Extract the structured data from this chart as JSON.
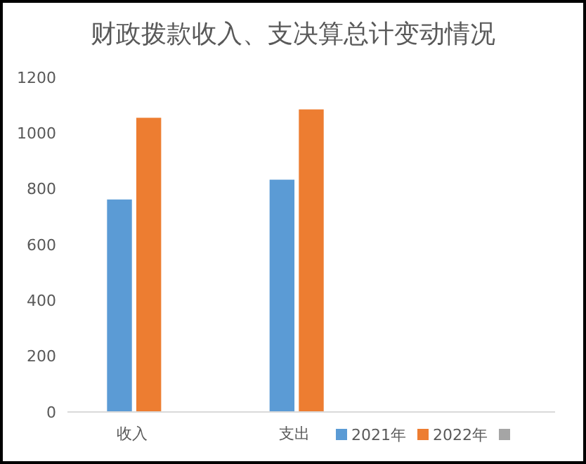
{
  "chart_data": {
    "type": "bar",
    "title": "财政拨款收入、支决算总计变动情况",
    "categories": [
      "收入",
      "支出",
      null
    ],
    "series": [
      {
        "name": "2021年",
        "color": "#5b9bd5",
        "values": [
          762,
          833,
          null
        ]
      },
      {
        "name": "2022年",
        "color": "#ed7d31",
        "values": [
          1055,
          1085,
          null
        ]
      },
      {
        "color": "#a5a5a5",
        "values": [
          null,
          null,
          null
        ]
      }
    ],
    "ylim": [
      0,
      1200
    ],
    "yticks": [
      0,
      200,
      400,
      600,
      800,
      1000,
      1200
    ],
    "grid": false,
    "legend": "bottom right"
  }
}
